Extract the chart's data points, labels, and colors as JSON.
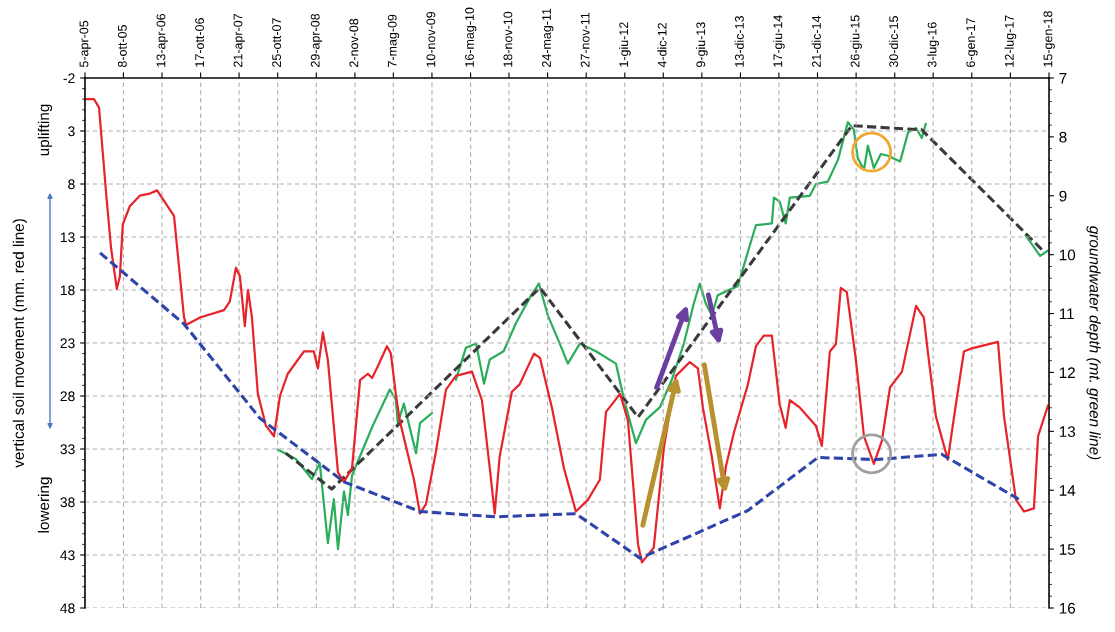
{
  "chart_data": {
    "type": "line",
    "ylabel": "vertical soil movement (mm. red line)",
    "y2label": "groundwater depth (mt. green line)",
    "annotations": [
      "uplifting",
      "lowering"
    ],
    "xlim": [
      "2005-04-05",
      "2018-01-15"
    ],
    "xticks": [
      {
        "value": "2005-04-05",
        "label": "5-apr-05"
      },
      {
        "value": "2005-10-08",
        "label": "8-ott-05"
      },
      {
        "value": "2006-04-13",
        "label": "13-apr-06"
      },
      {
        "value": "2006-10-17",
        "label": "17-ott-06"
      },
      {
        "value": "2007-04-21",
        "label": "21-apr-07"
      },
      {
        "value": "2007-10-25",
        "label": "25-ott-07"
      },
      {
        "value": "2008-04-29",
        "label": "29-apr-08"
      },
      {
        "value": "2008-11-02",
        "label": "2-nov-08"
      },
      {
        "value": "2009-05-07",
        "label": "7-mag-09"
      },
      {
        "value": "2009-11-10",
        "label": "10-nov-09"
      },
      {
        "value": "2010-05-16",
        "label": "16-mag-10"
      },
      {
        "value": "2010-11-18",
        "label": "18-nov-10"
      },
      {
        "value": "2011-05-24",
        "label": "24-mag-11"
      },
      {
        "value": "2011-11-27",
        "label": "27-nov-11"
      },
      {
        "value": "2012-06-01",
        "label": "1-giu-12"
      },
      {
        "value": "2012-12-04",
        "label": "4-dic-12"
      },
      {
        "value": "2013-06-09",
        "label": "9-giu-13"
      },
      {
        "value": "2013-12-13",
        "label": "13-dic-13"
      },
      {
        "value": "2014-06-17",
        "label": "17-giu-14"
      },
      {
        "value": "2014-12-21",
        "label": "21-dic-14"
      },
      {
        "value": "2015-06-26",
        "label": "26-giu-15"
      },
      {
        "value": "2015-12-30",
        "label": "30-dic-15"
      },
      {
        "value": "2016-07-03",
        "label": "3-lug-16"
      },
      {
        "value": "2017-01-06",
        "label": "6-gen-17"
      },
      {
        "value": "2017-07-12",
        "label": "12-lug-17"
      },
      {
        "value": "2018-01-15",
        "label": "15-gen-18"
      }
    ],
    "ylim": [
      48,
      -2
    ],
    "yticks": [
      -2,
      3,
      8,
      13,
      18,
      23,
      28,
      33,
      38,
      43,
      48
    ],
    "y2lim": [
      16,
      7
    ],
    "y2ticks": [
      7,
      8,
      9,
      10,
      11,
      12,
      13,
      14,
      15,
      16
    ],
    "grid": true,
    "series": [
      {
        "color": "#e8242b",
        "line_style": "solid",
        "x": [
          "2005-04-05",
          "2005-05-19",
          "2005-06-12",
          "2005-07-16",
          "2005-08-09",
          "2005-09-06",
          "2005-09-21",
          "2005-10-05",
          "2005-11-08",
          "2005-12-26",
          "2006-02-13",
          "2006-03-20",
          "2006-06-10",
          "2006-07-28",
          "2006-08-07",
          "2006-10-14",
          "2007-02-07",
          "2007-03-07",
          "2007-04-06",
          "2007-04-25",
          "2007-05-19",
          "2007-06-03",
          "2007-06-22",
          "2007-07-21",
          "2007-08-29",
          "2007-10-07",
          "2007-11-05",
          "2007-12-13",
          "2008-02-29",
          "2008-04-17",
          "2008-05-07",
          "2008-05-31",
          "2008-06-24",
          "2008-08-12",
          "2008-09-10",
          "2008-10-19",
          "2008-11-27",
          "2009-01-04",
          "2009-01-24",
          "2009-02-21",
          "2009-04-06",
          "2009-04-25",
          "2009-05-19",
          "2009-06-07",
          "2009-08-15",
          "2009-09-13",
          "2009-10-12",
          "2009-11-29",
          "2010-01-17",
          "2010-03-06",
          "2010-05-23",
          "2010-07-10",
          "2010-08-17",
          "2010-09-10",
          "2010-10-04",
          "2010-12-02",
          "2011-01-09",
          "2011-03-19",
          "2011-04-17",
          "2011-06-14",
          "2011-08-11",
          "2011-10-08",
          "2011-12-05",
          "2012-02-01",
          "2012-03-02",
          "2012-05-09",
          "2012-06-16",
          "2012-08-04",
          "2012-08-23",
          "2012-10-19",
          "2012-12-07",
          "2013-02-03",
          "2013-04-12",
          "2013-05-21",
          "2013-06-14",
          "2013-07-27",
          "2013-09-04",
          "2013-10-04",
          "2013-11-12",
          "2014-01-18",
          "2014-02-26",
          "2014-04-05",
          "2014-05-14",
          "2014-06-21",
          "2014-07-20",
          "2014-08-09",
          "2014-09-27",
          "2014-12-13",
          "2015-01-11",
          "2015-02-19",
          "2015-03-20",
          "2015-04-13",
          "2015-05-12",
          "2015-06-25",
          "2015-08-03",
          "2015-09-20",
          "2015-10-29",
          "2015-12-07",
          "2016-02-03",
          "2016-04-11",
          "2016-05-19",
          "2016-06-07",
          "2016-07-16",
          "2016-09-12",
          "2016-10-21",
          "2016-11-29",
          "2017-01-06",
          "2017-05-13",
          "2017-06-11",
          "2017-08-08",
          "2017-09-16",
          "2017-11-03",
          "2017-11-23",
          "2018-01-10"
        ],
        "values": [
          0.0,
          0.0,
          0.8,
          8.8,
          14.0,
          17.9,
          16.7,
          11.8,
          10.1,
          9.1,
          8.9,
          8.6,
          11.0,
          20.5,
          21.3,
          20.6,
          19.9,
          19.1,
          15.9,
          16.7,
          21.4,
          18.0,
          20.5,
          27.8,
          30.8,
          31.8,
          28.0,
          25.9,
          23.8,
          23.8,
          25.4,
          22.0,
          24.6,
          35.2,
          36.1,
          34.8,
          26.5,
          25.9,
          26.3,
          25.2,
          23.3,
          24.0,
          27.8,
          30.3,
          35.9,
          39.1,
          38.2,
          33.3,
          27.4,
          26.1,
          25.7,
          28.4,
          34.8,
          39.1,
          33.7,
          27.6,
          26.9,
          24.0,
          24.4,
          29.1,
          34.8,
          38.9,
          37.8,
          35.9,
          29.5,
          27.8,
          30.3,
          42.0,
          43.7,
          42.3,
          32.9,
          26.1,
          24.8,
          25.4,
          29.1,
          33.7,
          38.6,
          34.6,
          31.4,
          26.9,
          23.3,
          22.3,
          22.3,
          28.8,
          31.0,
          28.4,
          29.1,
          30.8,
          32.7,
          23.8,
          23.1,
          17.8,
          18.2,
          24.6,
          31.8,
          34.4,
          32.2,
          27.2,
          25.7,
          19.5,
          20.6,
          23.8,
          29.9,
          34.0,
          28.8,
          23.8,
          23.5,
          22.9,
          29.9,
          37.8,
          38.9,
          38.6,
          31.8,
          28.9
        ]
      },
      {
        "color": "#2aae5a",
        "line_style": "solid",
        "axis": "y2",
        "x": [
          "2007-10-25",
          "2008-01-21",
          "2008-04-08",
          "2008-05-16",
          "2008-06-24",
          "2008-07-23",
          "2008-08-12",
          "2008-09-10",
          "2008-09-29",
          "2008-10-19",
          "2009-01-24",
          "2009-04-20",
          "2009-05-19",
          "2009-05-29",
          "2009-06-27",
          "2009-08-25",
          "2009-09-13",
          "2009-11-10",
          "2010-01-01",
          "2010-03-06",
          "2010-04-24",
          "2010-06-12",
          "2010-07-20",
          "2010-08-17",
          "2010-10-23",
          "2010-12-21",
          "2011-02-27",
          "2011-04-12",
          "2011-05-25",
          "2011-07-22",
          "2011-08-30",
          "2011-10-27",
          "2012-01-13",
          "2012-04-19",
          "2012-05-28",
          "2012-07-25",
          "2012-09-12",
          "2012-11-18",
          "2013-01-15",
          "2013-03-14",
          "2013-05-01",
          "2013-05-30",
          "2013-06-28",
          "2013-07-27",
          "2013-08-25",
          "2013-12-01",
          "2014-01-18",
          "2014-02-26",
          "2014-05-14",
          "2014-05-24",
          "2014-06-21",
          "2014-07-20",
          "2014-08-09",
          "2014-11-14",
          "2014-12-13",
          "2015-02-09",
          "2015-03-30",
          "2015-05-17",
          "2015-06-15",
          "2015-07-04",
          "2015-08-03",
          "2015-08-22",
          "2015-09-20",
          "2015-10-24",
          "2015-11-27",
          "2016-01-25",
          "2016-03-04",
          "2016-04-11",
          "2016-05-09",
          "2016-05-28",
          "2017-01-01",
          "2017-09-25",
          "2017-12-03",
          "2018-01-15"
        ],
        "values": [
          13.31,
          13.47,
          13.81,
          13.54,
          14.9,
          14.15,
          15.0,
          14.02,
          14.42,
          13.75,
          12.93,
          12.29,
          12.46,
          12.86,
          12.53,
          13.37,
          12.86,
          12.69,
          null,
          12.12,
          11.58,
          11.51,
          12.19,
          11.78,
          11.64,
          11.17,
          10.73,
          10.49,
          11.03,
          11.51,
          11.85,
          11.51,
          11.64,
          11.85,
          12.46,
          13.2,
          12.8,
          12.59,
          12.12,
          11.51,
          10.83,
          10.49,
          10.83,
          11.03,
          10.69,
          10.53,
          9.95,
          9.5,
          9.47,
          9.03,
          9.1,
          9.47,
          9.03,
          9.0,
          8.8,
          8.76,
          8.39,
          7.75,
          7.88,
          8.36,
          8.56,
          8.15,
          8.53,
          8.29,
          8.32,
          8.42,
          7.92,
          7.85,
          8.02,
          7.78,
          null,
          9.68,
          10.02,
          9.92
        ]
      },
      {
        "color": "#2e44a8",
        "line_style": "dashed",
        "x": [
          "2005-06-17",
          "2006-07-28",
          "2007-07-31",
          "2008-09-10",
          "2009-09-13",
          "2010-09-15",
          "2011-10-08",
          "2012-08-14",
          "2014-01-18",
          "2014-12-23",
          "2015-09-30",
          "2016-08-13",
          "2017-08-27"
        ],
        "values": [
          14.5,
          21.2,
          30.1,
          36.1,
          38.9,
          39.4,
          39.1,
          43.3,
          38.8,
          33.8,
          34.0,
          33.5,
          37.8
        ]
      },
      {
        "color": "#3a3a3a",
        "line_style": "dashed",
        "axis": "y2",
        "x": [
          "2007-12-03",
          "2008-07-13",
          "2011-04-17",
          "2012-08-04",
          "2015-06-05",
          "2016-05-09",
          "2017-12-22"
        ],
        "values": [
          13.37,
          13.98,
          10.56,
          12.76,
          7.81,
          7.88,
          9.95
        ]
      }
    ]
  }
}
